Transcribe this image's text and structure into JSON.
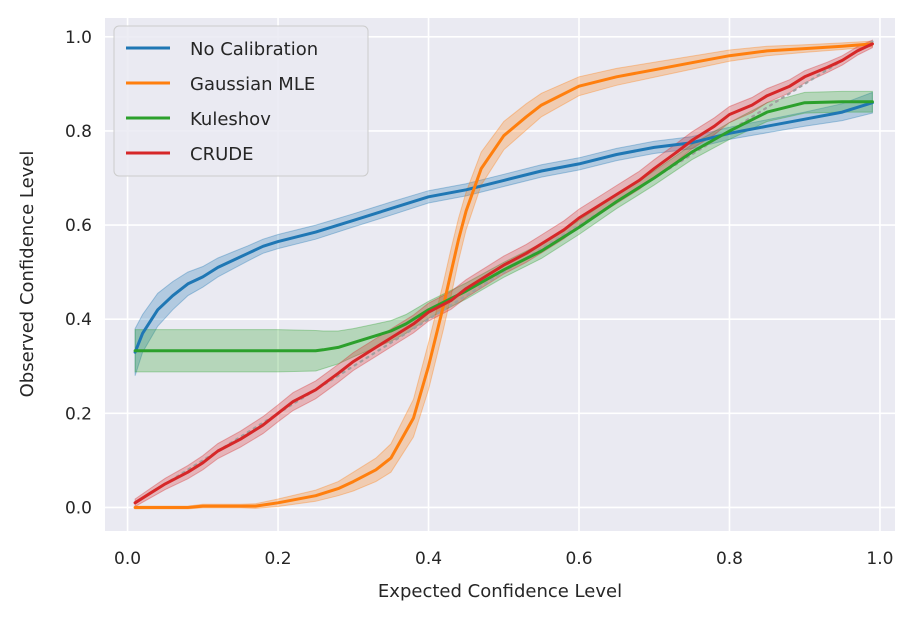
{
  "chart_data": {
    "type": "line",
    "title": "",
    "xlabel": "Expected Confidence Level",
    "ylabel": "Observed Confidence Level",
    "xlim": [
      -0.03,
      1.02
    ],
    "ylim": [
      -0.05,
      1.04
    ],
    "xticks": [
      0.0,
      0.2,
      0.4,
      0.6,
      0.8,
      1.0
    ],
    "xtick_labels": [
      "0.0",
      "0.2",
      "0.4",
      "0.6",
      "0.8",
      "1.0"
    ],
    "yticks": [
      0.0,
      0.2,
      0.4,
      0.6,
      0.8,
      1.0
    ],
    "ytick_labels": [
      "0.0",
      "0.2",
      "0.4",
      "0.6",
      "0.8",
      "1.0"
    ],
    "grid": true,
    "legend_position": "top-left",
    "reference_line": {
      "name": "ideal",
      "style": "dotted",
      "color": "#a0a0a0",
      "x": [
        0.01,
        0.99
      ],
      "y": [
        0.01,
        0.99
      ]
    },
    "series": [
      {
        "name": "No Calibration",
        "color": "#1f77b4",
        "x": [
          0.01,
          0.02,
          0.04,
          0.06,
          0.08,
          0.1,
          0.12,
          0.14,
          0.16,
          0.18,
          0.2,
          0.25,
          0.3,
          0.35,
          0.4,
          0.45,
          0.5,
          0.55,
          0.6,
          0.65,
          0.7,
          0.75,
          0.8,
          0.85,
          0.9,
          0.95,
          0.99
        ],
        "y": [
          0.33,
          0.37,
          0.42,
          0.45,
          0.475,
          0.49,
          0.51,
          0.525,
          0.54,
          0.555,
          0.565,
          0.585,
          0.61,
          0.635,
          0.66,
          0.675,
          0.695,
          0.715,
          0.73,
          0.75,
          0.765,
          0.775,
          0.795,
          0.81,
          0.825,
          0.84,
          0.86
        ],
        "band": [
          0.05,
          0.04,
          0.035,
          0.03,
          0.025,
          0.022,
          0.02,
          0.018,
          0.016,
          0.015,
          0.015,
          0.015,
          0.014,
          0.014,
          0.013,
          0.013,
          0.013,
          0.013,
          0.013,
          0.013,
          0.013,
          0.013,
          0.013,
          0.014,
          0.015,
          0.018,
          0.022
        ]
      },
      {
        "name": "Gaussian MLE",
        "color": "#ff7f0e",
        "x": [
          0.01,
          0.05,
          0.08,
          0.1,
          0.15,
          0.17,
          0.2,
          0.25,
          0.28,
          0.3,
          0.33,
          0.35,
          0.38,
          0.4,
          0.42,
          0.43,
          0.44,
          0.45,
          0.47,
          0.5,
          0.53,
          0.55,
          0.6,
          0.65,
          0.7,
          0.75,
          0.8,
          0.85,
          0.9,
          0.95,
          0.99
        ],
        "y": [
          0.0,
          0.0,
          0.0,
          0.003,
          0.003,
          0.003,
          0.01,
          0.025,
          0.04,
          0.055,
          0.08,
          0.105,
          0.19,
          0.3,
          0.43,
          0.5,
          0.57,
          0.63,
          0.72,
          0.79,
          0.83,
          0.855,
          0.895,
          0.915,
          0.93,
          0.945,
          0.96,
          0.97,
          0.975,
          0.98,
          0.985
        ],
        "band": [
          0.003,
          0.003,
          0.003,
          0.004,
          0.004,
          0.005,
          0.008,
          0.012,
          0.015,
          0.02,
          0.025,
          0.03,
          0.04,
          0.05,
          0.05,
          0.05,
          0.045,
          0.04,
          0.035,
          0.03,
          0.028,
          0.025,
          0.02,
          0.018,
          0.016,
          0.014,
          0.012,
          0.01,
          0.008,
          0.007,
          0.006
        ]
      },
      {
        "name": "Kuleshov",
        "color": "#2ca02c",
        "x": [
          0.01,
          0.05,
          0.1,
          0.15,
          0.2,
          0.25,
          0.26,
          0.28,
          0.3,
          0.33,
          0.35,
          0.37,
          0.4,
          0.45,
          0.5,
          0.55,
          0.6,
          0.65,
          0.7,
          0.75,
          0.8,
          0.85,
          0.9,
          0.95,
          0.99
        ],
        "y": [
          0.333,
          0.333,
          0.333,
          0.333,
          0.333,
          0.333,
          0.335,
          0.34,
          0.35,
          0.365,
          0.375,
          0.39,
          0.42,
          0.46,
          0.505,
          0.545,
          0.595,
          0.65,
          0.7,
          0.755,
          0.8,
          0.84,
          0.86,
          0.862,
          0.862
        ],
        "band": [
          0.045,
          0.045,
          0.045,
          0.045,
          0.045,
          0.043,
          0.04,
          0.035,
          0.03,
          0.025,
          0.022,
          0.02,
          0.018,
          0.017,
          0.016,
          0.016,
          0.015,
          0.015,
          0.015,
          0.016,
          0.018,
          0.02,
          0.022,
          0.022,
          0.022
        ]
      },
      {
        "name": "CRUDE",
        "color": "#d62728",
        "x": [
          0.01,
          0.03,
          0.05,
          0.08,
          0.1,
          0.12,
          0.15,
          0.18,
          0.2,
          0.22,
          0.25,
          0.28,
          0.3,
          0.33,
          0.35,
          0.38,
          0.4,
          0.43,
          0.45,
          0.48,
          0.5,
          0.53,
          0.55,
          0.58,
          0.6,
          0.63,
          0.65,
          0.68,
          0.7,
          0.73,
          0.75,
          0.78,
          0.8,
          0.83,
          0.85,
          0.88,
          0.9,
          0.93,
          0.95,
          0.97,
          0.99
        ],
        "y": [
          0.01,
          0.03,
          0.05,
          0.075,
          0.095,
          0.12,
          0.145,
          0.175,
          0.2,
          0.225,
          0.25,
          0.285,
          0.31,
          0.34,
          0.36,
          0.39,
          0.415,
          0.44,
          0.465,
          0.495,
          0.515,
          0.54,
          0.56,
          0.59,
          0.615,
          0.645,
          0.665,
          0.695,
          0.72,
          0.755,
          0.78,
          0.81,
          0.835,
          0.855,
          0.875,
          0.895,
          0.915,
          0.935,
          0.95,
          0.97,
          0.985
        ],
        "band": [
          0.008,
          0.01,
          0.012,
          0.014,
          0.015,
          0.016,
          0.017,
          0.018,
          0.018,
          0.019,
          0.019,
          0.019,
          0.019,
          0.019,
          0.019,
          0.019,
          0.019,
          0.019,
          0.019,
          0.019,
          0.019,
          0.019,
          0.019,
          0.019,
          0.019,
          0.019,
          0.019,
          0.019,
          0.019,
          0.019,
          0.018,
          0.018,
          0.017,
          0.016,
          0.015,
          0.014,
          0.013,
          0.011,
          0.01,
          0.009,
          0.008
        ]
      }
    ]
  }
}
